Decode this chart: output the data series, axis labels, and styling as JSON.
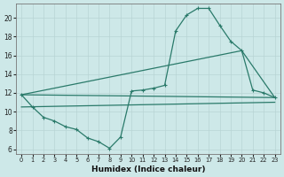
{
  "xlabel": "Humidex (Indice chaleur)",
  "bg_color": "#cde8e8",
  "grid_color": "#b8d4d4",
  "line_color": "#2a7a6a",
  "x_ticks": [
    0,
    1,
    2,
    3,
    4,
    5,
    6,
    7,
    8,
    9,
    10,
    11,
    12,
    13,
    14,
    15,
    16,
    17,
    18,
    19,
    20,
    21,
    22,
    23
  ],
  "y_ticks": [
    6,
    8,
    10,
    12,
    14,
    16,
    18,
    20
  ],
  "ylim": [
    5.5,
    21.5
  ],
  "xlim": [
    -0.5,
    23.5
  ],
  "curve1_x": [
    0,
    1,
    2,
    3,
    4,
    5,
    6,
    7,
    8,
    9,
    10,
    11,
    12,
    13,
    14,
    15,
    16,
    17,
    18,
    19,
    20,
    21,
    22,
    23
  ],
  "curve1_y": [
    11.8,
    10.5,
    9.4,
    9.0,
    8.4,
    8.1,
    7.2,
    6.8,
    6.1,
    7.3,
    12.2,
    12.3,
    12.5,
    12.8,
    18.6,
    20.3,
    21.0,
    21.0,
    19.2,
    17.5,
    16.5,
    12.3,
    12.0,
    11.5
  ],
  "curve2_x": [
    0,
    20,
    23
  ],
  "curve2_y": [
    11.8,
    16.5,
    11.5
  ],
  "curve3_x": [
    0,
    23
  ],
  "curve3_y": [
    11.8,
    11.5
  ],
  "curve4_x": [
    0,
    23
  ],
  "curve4_y": [
    10.5,
    11.0
  ]
}
